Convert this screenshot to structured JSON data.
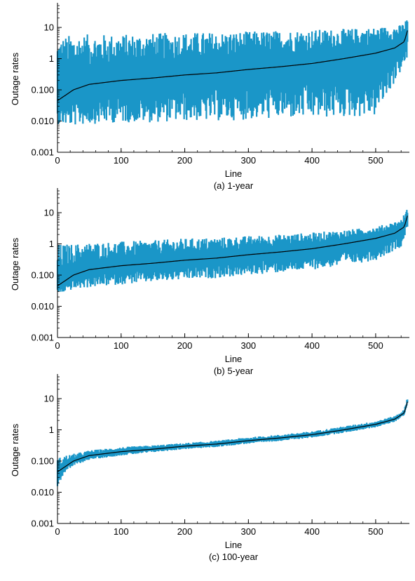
{
  "colors": {
    "series_band": "#1a96c8",
    "median_line": "#000000",
    "axis": "#000000"
  },
  "chart_data": [
    {
      "type": "line",
      "caption": "(a) 1-year",
      "xlabel": "Line",
      "ylabel": "Outage rates",
      "y_scale": "log",
      "xlim": [
        0,
        553
      ],
      "ylim": [
        0.001,
        50
      ],
      "xticks": [
        "0",
        "100",
        "200",
        "300",
        "400",
        "500"
      ],
      "yticks": [
        "0.001",
        "0.010",
        "0.100",
        "1",
        "10"
      ],
      "series": [
        {
          "points": [
            [
              0,
              0.045
            ],
            [
              25,
              0.1
            ],
            [
              50,
              0.15
            ],
            [
              100,
              0.2
            ],
            [
              150,
              0.24
            ],
            [
              200,
              0.3
            ],
            [
              250,
              0.35
            ],
            [
              300,
              0.45
            ],
            [
              350,
              0.55
            ],
            [
              400,
              0.7
            ],
            [
              450,
              1.0
            ],
            [
              500,
              1.5
            ],
            [
              530,
              2.2
            ],
            [
              545,
              3.5
            ],
            [
              550,
              8
            ]
          ],
          "band_low": [
            [
              0,
              0.008
            ],
            [
              25,
              0.007
            ],
            [
              50,
              0.008
            ],
            [
              100,
              0.009
            ],
            [
              150,
              0.009
            ],
            [
              200,
              0.01
            ],
            [
              250,
              0.01
            ],
            [
              300,
              0.011
            ],
            [
              350,
              0.012
            ],
            [
              400,
              0.012
            ],
            [
              450,
              0.013
            ],
            [
              500,
              0.014
            ],
            [
              540,
              0.4
            ],
            [
              550,
              1
            ]
          ],
          "band_high": [
            [
              0,
              5
            ],
            [
              25,
              6
            ],
            [
              50,
              6
            ],
            [
              100,
              6
            ],
            [
              150,
              6.5
            ],
            [
              200,
              7
            ],
            [
              250,
              7
            ],
            [
              300,
              7.5
            ],
            [
              350,
              8
            ],
            [
              400,
              8.5
            ],
            [
              450,
              9
            ],
            [
              500,
              10
            ],
            [
              540,
              12
            ],
            [
              550,
              20
            ]
          ]
        }
      ]
    },
    {
      "type": "line",
      "caption": "(b) 5-year",
      "xlabel": "Line",
      "ylabel": "Outage rates",
      "y_scale": "log",
      "xlim": [
        0,
        553
      ],
      "ylim": [
        0.001,
        50
      ],
      "xticks": [
        "0",
        "100",
        "200",
        "300",
        "400",
        "500"
      ],
      "yticks": [
        "0.001",
        "0.010",
        "0.100",
        "1",
        "10"
      ],
      "series": [
        {
          "points": [
            [
              0,
              0.045
            ],
            [
              25,
              0.1
            ],
            [
              50,
              0.15
            ],
            [
              100,
              0.2
            ],
            [
              150,
              0.24
            ],
            [
              200,
              0.3
            ],
            [
              250,
              0.35
            ],
            [
              300,
              0.45
            ],
            [
              350,
              0.55
            ],
            [
              400,
              0.7
            ],
            [
              450,
              1.0
            ],
            [
              500,
              1.5
            ],
            [
              530,
              2.2
            ],
            [
              545,
              3.5
            ],
            [
              550,
              8
            ]
          ],
          "band_low": [
            [
              0,
              0.025
            ],
            [
              25,
              0.035
            ],
            [
              50,
              0.04
            ],
            [
              100,
              0.05
            ],
            [
              150,
              0.06
            ],
            [
              200,
              0.07
            ],
            [
              250,
              0.08
            ],
            [
              300,
              0.1
            ],
            [
              350,
              0.12
            ],
            [
              400,
              0.15
            ],
            [
              450,
              0.2
            ],
            [
              500,
              0.3
            ],
            [
              540,
              0.8
            ],
            [
              550,
              3
            ]
          ],
          "band_high": [
            [
              0,
              1
            ],
            [
              25,
              1
            ],
            [
              50,
              1.1
            ],
            [
              100,
              1.2
            ],
            [
              150,
              1.3
            ],
            [
              200,
              1.5
            ],
            [
              250,
              1.6
            ],
            [
              300,
              1.8
            ],
            [
              350,
              2
            ],
            [
              400,
              2.3
            ],
            [
              450,
              2.8
            ],
            [
              500,
              3.5
            ],
            [
              540,
              6
            ],
            [
              550,
              14
            ]
          ]
        }
      ]
    },
    {
      "type": "line",
      "caption": "(c) 100-year",
      "xlabel": "Line",
      "ylabel": "Outage rates",
      "y_scale": "log",
      "xlim": [
        0,
        553
      ],
      "ylim": [
        0.001,
        50
      ],
      "xticks": [
        "0",
        "100",
        "200",
        "300",
        "400",
        "500"
      ],
      "yticks": [
        "0.001",
        "0.010",
        "0.100",
        "1",
        "10"
      ],
      "series": [
        {
          "points": [
            [
              0,
              0.045
            ],
            [
              25,
              0.1
            ],
            [
              50,
              0.15
            ],
            [
              100,
              0.2
            ],
            [
              150,
              0.24
            ],
            [
              200,
              0.3
            ],
            [
              250,
              0.35
            ],
            [
              300,
              0.45
            ],
            [
              350,
              0.55
            ],
            [
              400,
              0.7
            ],
            [
              450,
              1.0
            ],
            [
              500,
              1.5
            ],
            [
              530,
              2.2
            ],
            [
              545,
              3.5
            ],
            [
              550,
              8
            ]
          ],
          "band_low": [
            [
              0,
              0.015
            ],
            [
              10,
              0.04
            ],
            [
              25,
              0.07
            ],
            [
              50,
              0.11
            ],
            [
              100,
              0.15
            ],
            [
              150,
              0.19
            ],
            [
              200,
              0.24
            ],
            [
              250,
              0.28
            ],
            [
              300,
              0.36
            ],
            [
              350,
              0.44
            ],
            [
              400,
              0.56
            ],
            [
              450,
              0.8
            ],
            [
              500,
              1.2
            ],
            [
              530,
              1.8
            ],
            [
              545,
              3
            ],
            [
              550,
              7
            ]
          ],
          "band_high": [
            [
              0,
              0.12
            ],
            [
              10,
              0.15
            ],
            [
              25,
              0.17
            ],
            [
              50,
              0.22
            ],
            [
              100,
              0.28
            ],
            [
              150,
              0.32
            ],
            [
              200,
              0.38
            ],
            [
              250,
              0.45
            ],
            [
              300,
              0.58
            ],
            [
              350,
              0.7
            ],
            [
              400,
              0.9
            ],
            [
              450,
              1.3
            ],
            [
              500,
              1.9
            ],
            [
              530,
              2.8
            ],
            [
              545,
              4.5
            ],
            [
              550,
              12
            ]
          ]
        }
      ]
    }
  ]
}
